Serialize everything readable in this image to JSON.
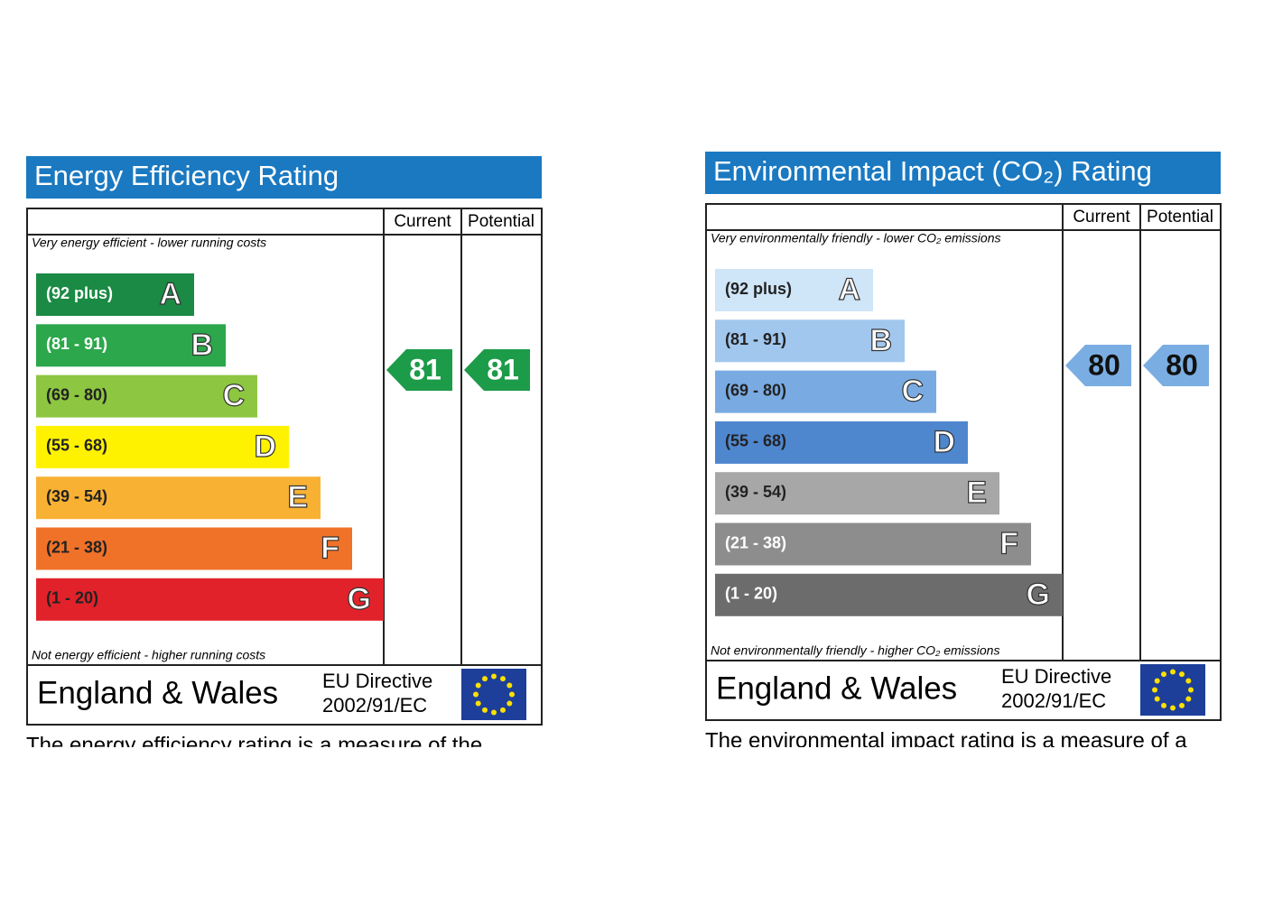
{
  "chart_data": [
    {
      "type": "epc",
      "title": "Energy Efficiency Rating",
      "columns": [
        "Current",
        "Potential"
      ],
      "top_note": "Very energy efficient - lower running costs",
      "bottom_note": "Not energy efficient - higher running costs",
      "bands": [
        {
          "range": "(92 plus)",
          "letter": "A",
          "color": "#1b8a44",
          "label_color": "#ffffff"
        },
        {
          "range": "(81 - 91)",
          "letter": "B",
          "color": "#2ca74b",
          "label_color": "#ffffff"
        },
        {
          "range": "(69 - 80)",
          "letter": "C",
          "color": "#8dc641",
          "label_color": "#222222"
        },
        {
          "range": "(55 - 68)",
          "letter": "D",
          "color": "#fff200",
          "label_color": "#222222"
        },
        {
          "range": "(39 - 54)",
          "letter": "E",
          "color": "#f8b133",
          "label_color": "#222222"
        },
        {
          "range": "(21 - 38)",
          "letter": "F",
          "color": "#f07229",
          "label_color": "#222222"
        },
        {
          "range": "(1 - 20)",
          "letter": "G",
          "color": "#e2222a",
          "label_color": "#222222"
        }
      ],
      "current": 81,
      "potential": 81,
      "rating_color": "#1c9b48",
      "region": "England & Wales",
      "directive": [
        "EU Directive",
        "2002/91/EC"
      ],
      "caption": "The energy efficiency rating is a measure of the"
    },
    {
      "type": "epc",
      "title": "Environmental Impact (CO₂) Rating",
      "columns": [
        "Current",
        "Potential"
      ],
      "top_note": "Very environmentally friendly - lower CO₂ emissions",
      "bottom_note": "Not environmentally friendly - higher CO₂ emissions",
      "bands": [
        {
          "range": "(92 plus)",
          "letter": "A",
          "color": "#cfe5f8",
          "label_color": "#222222"
        },
        {
          "range": "(81 - 91)",
          "letter": "B",
          "color": "#a2c7ee",
          "label_color": "#222222"
        },
        {
          "range": "(69 - 80)",
          "letter": "C",
          "color": "#79abe2",
          "label_color": "#222222"
        },
        {
          "range": "(55 - 68)",
          "letter": "D",
          "color": "#4f87cf",
          "label_color": "#222222"
        },
        {
          "range": "(39 - 54)",
          "letter": "E",
          "color": "#a7a7a7",
          "label_color": "#222222"
        },
        {
          "range": "(21 - 38)",
          "letter": "F",
          "color": "#8d8d8d",
          "label_color": "#ffffff"
        },
        {
          "range": "(1 - 20)",
          "letter": "G",
          "color": "#6c6c6c",
          "label_color": "#ffffff"
        }
      ],
      "current": 80,
      "potential": 80,
      "rating_color": "#7aaee2",
      "region": "England & Wales",
      "directive": [
        "EU Directive",
        "2002/91/EC"
      ],
      "caption": "The environmental impact rating is a measure of a"
    }
  ]
}
